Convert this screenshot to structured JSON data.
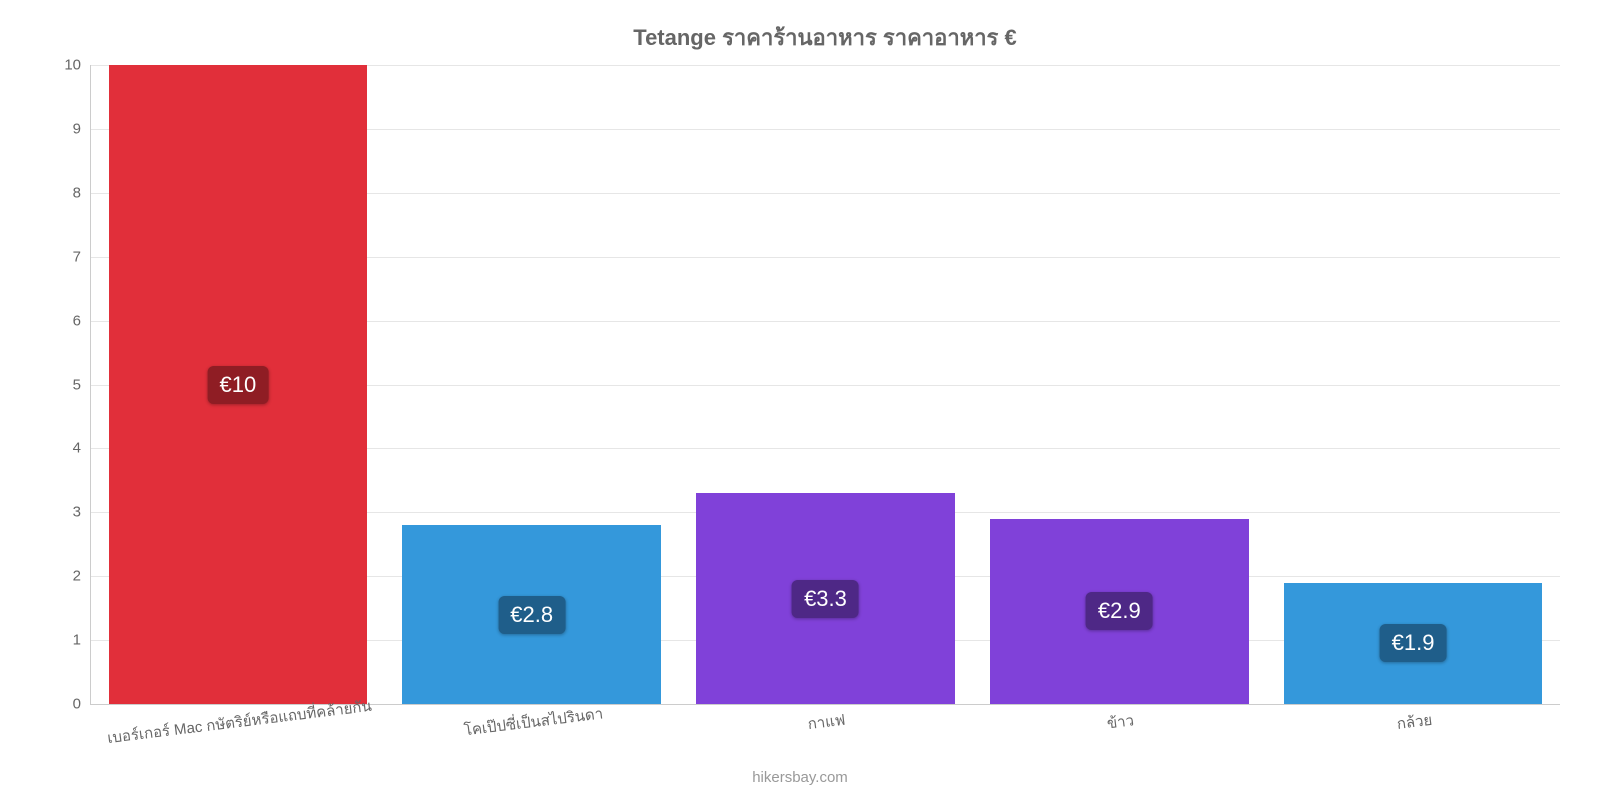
{
  "chart": {
    "type": "bar",
    "title": "Tetange ราคาร้านอาหาร ราคาอาหาร €",
    "title_color": "#666666",
    "title_fontsize": 22,
    "background_color": "#ffffff",
    "grid_color": "#e6e6e6",
    "axis_color": "#cccccc",
    "tick_label_color": "#666666",
    "tick_fontsize": 15,
    "x_label_rotation": -7,
    "bar_width_pct": 88,
    "ylim": [
      0,
      10
    ],
    "yticks": [
      0,
      1,
      2,
      3,
      4,
      5,
      6,
      7,
      8,
      9,
      10
    ],
    "categories": [
      "เบอร์เกอร์ Mac กษัตริย์หรือแถบที่คล้ายกัน",
      "โคเป๊ปซี่เป็นสไปรินดา",
      "กาแฟ",
      "ข้าว",
      "กล้วย"
    ],
    "values": [
      10,
      2.8,
      3.3,
      2.9,
      1.9
    ],
    "value_display": [
      "€10",
      "€2.8",
      "€3.3",
      "€2.9",
      "€1.9"
    ],
    "bar_colors": [
      "#e12f3a",
      "#3498db",
      "#8041d9",
      "#8041d9",
      "#3498db"
    ],
    "label_bg_colors": [
      "#8f1d24",
      "#1f5e8a",
      "#4e2886",
      "#4e2886",
      "#1f5e8a"
    ],
    "value_label_fontsize": 22,
    "value_label_color": "#ffffff",
    "source": "hikersbay.com",
    "source_color": "#999999"
  }
}
